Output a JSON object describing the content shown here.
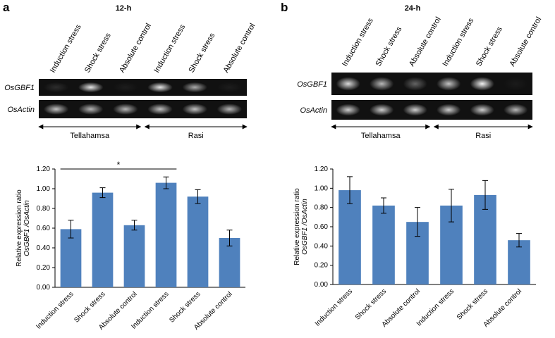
{
  "chart_data": [
    {
      "type": "bar",
      "panel": "a",
      "title": "12-h",
      "y_label": [
        "Relative expression ratio",
        "OsGBF1 /OsActin"
      ],
      "categories": [
        "Induction stress",
        "Shock stress",
        "Absolute control",
        "Induction stress",
        "Shock stress",
        "Absolute control"
      ],
      "values": [
        0.59,
        0.96,
        0.63,
        1.06,
        0.92,
        0.5
      ],
      "errors": [
        0.09,
        0.05,
        0.05,
        0.06,
        0.07,
        0.08
      ],
      "color": "#4f81bd",
      "ylim": [
        0,
        1.2
      ],
      "yticks": [
        {
          "value": 0,
          "label": "0.00"
        },
        {
          "value": 0.2,
          "label": "0.20"
        },
        {
          "value": 0.4,
          "label": "0.40"
        },
        {
          "value": 0.6,
          "label": "0.60"
        },
        {
          "value": 0.8,
          "label": "0.80"
        },
        {
          "value": 1.0,
          "label": "1.00"
        },
        {
          "value": 1.2,
          "label": "1.20"
        }
      ],
      "significance": {
        "label": "*",
        "between": [
          0,
          3
        ]
      }
    },
    {
      "type": "bar",
      "panel": "b",
      "title": "24-h",
      "y_label": [
        "Relative expression ratio",
        "OsGBF1 /OsActin"
      ],
      "categories": [
        "Induction stress",
        "Shock stress",
        "Absolute control",
        "Induction stress",
        "Shock stress",
        "Absolute control"
      ],
      "values": [
        0.98,
        0.82,
        0.65,
        0.82,
        0.93,
        0.46
      ],
      "errors": [
        0.14,
        0.08,
        0.15,
        0.17,
        0.15,
        0.07
      ],
      "color": "#4f81bd",
      "ylim": [
        0,
        1.2
      ],
      "yticks": [
        {
          "value": 0,
          "label": "0.00"
        },
        {
          "value": 0.2,
          "label": "0.20"
        },
        {
          "value": 0.4,
          "label": "0.40"
        },
        {
          "value": 0.6,
          "label": "0.60"
        },
        {
          "value": 0.8,
          "label": "0.80"
        },
        {
          "value": 1.0,
          "label": "1.00"
        },
        {
          "value": 1.2,
          "label": "1.20"
        }
      ]
    }
  ],
  "gels": [
    {
      "lanes": [
        "Induction stress",
        "Shock stress",
        "Absolute control",
        "Induction stress",
        "Shock stress",
        "Absolute control"
      ],
      "rows": [
        "OsGBF1",
        "OsActin"
      ],
      "groups": [
        "Tellahamsa",
        "Rasi"
      ]
    },
    {
      "lanes": [
        "Induction stress",
        "Shock stress",
        "Absolute control",
        "Induction stress",
        "Shock stress",
        "Absolute control"
      ],
      "rows": [
        "OsGBF1",
        "OsActin"
      ],
      "groups": [
        "Tellahamsa",
        "Rasi"
      ]
    }
  ]
}
